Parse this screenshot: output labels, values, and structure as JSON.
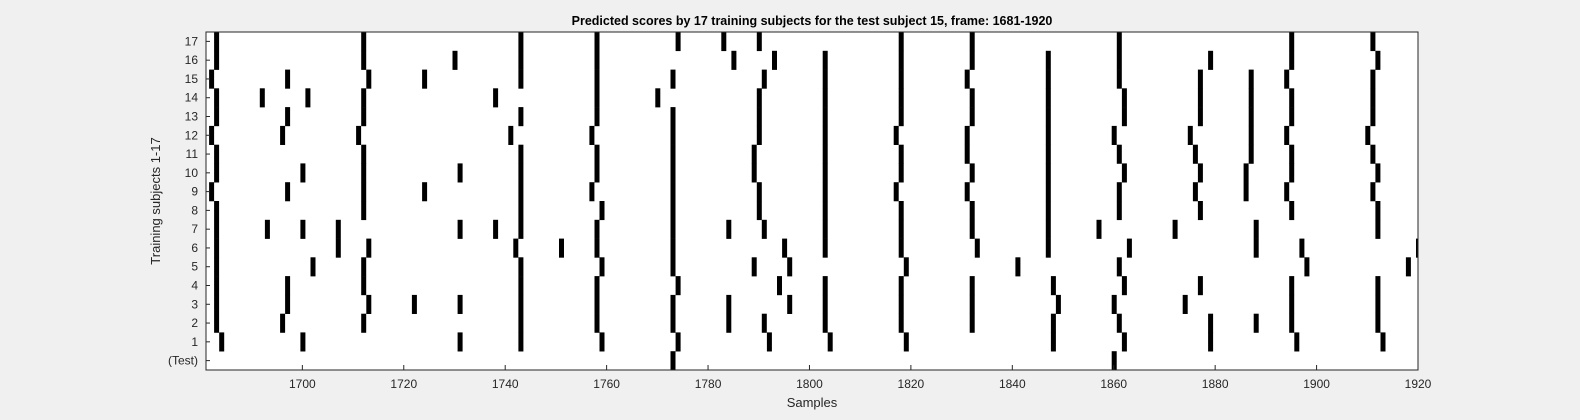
{
  "chart_data": {
    "type": "heatmap",
    "title": "Predicted scores by 17 training subjects for the test subject 15, frame: 1681-1920",
    "xlabel": "Samples",
    "ylabel": "Training subjects 1-17",
    "xlim": [
      1681,
      1920
    ],
    "xticks": [
      1700,
      1720,
      1740,
      1760,
      1780,
      1800,
      1820,
      1840,
      1860,
      1880,
      1900,
      1920
    ],
    "rows": [
      {
        "label": "(Test)",
        "events": [
          1773,
          1860
        ]
      },
      {
        "label": "1",
        "events": [
          1684,
          1700,
          1731,
          1743,
          1759,
          1774,
          1792,
          1804,
          1819,
          1848,
          1862,
          1879,
          1896,
          1913
        ]
      },
      {
        "label": "2",
        "events": [
          1683,
          1696,
          1712,
          1743,
          1758,
          1773,
          1784,
          1791,
          1803,
          1818,
          1832,
          1848,
          1861,
          1879,
          1888,
          1895,
          1912
        ]
      },
      {
        "label": "3",
        "events": [
          1683,
          1697,
          1713,
          1722,
          1731,
          1743,
          1758,
          1773,
          1784,
          1796,
          1803,
          1818,
          1832,
          1849,
          1860,
          1874,
          1895,
          1912
        ]
      },
      {
        "label": "4",
        "events": [
          1683,
          1697,
          1712,
          1743,
          1758,
          1774,
          1794,
          1803,
          1818,
          1832,
          1848,
          1862,
          1877,
          1895,
          1912
        ]
      },
      {
        "label": "5",
        "events": [
          1683,
          1702,
          1712,
          1743,
          1759,
          1773,
          1789,
          1796,
          1819,
          1841,
          1861,
          1898,
          1918
        ]
      },
      {
        "label": "6",
        "events": [
          1683,
          1707,
          1713,
          1742,
          1751,
          1758,
          1773,
          1795,
          1803,
          1818,
          1833,
          1847,
          1863,
          1888,
          1897,
          1920
        ]
      },
      {
        "label": "7",
        "events": [
          1683,
          1693,
          1700,
          1707,
          1731,
          1738,
          1743,
          1758,
          1773,
          1784,
          1791,
          1803,
          1818,
          1832,
          1847,
          1857,
          1872,
          1888,
          1912
        ]
      },
      {
        "label": "8",
        "events": [
          1683,
          1712,
          1743,
          1759,
          1773,
          1790,
          1803,
          1818,
          1832,
          1847,
          1861,
          1877,
          1895,
          1912
        ]
      },
      {
        "label": "9",
        "events": [
          1682,
          1697,
          1712,
          1724,
          1743,
          1757,
          1773,
          1790,
          1803,
          1817,
          1831,
          1847,
          1861,
          1876,
          1886,
          1894,
          1911
        ]
      },
      {
        "label": "10",
        "events": [
          1683,
          1700,
          1712,
          1731,
          1743,
          1758,
          1773,
          1789,
          1803,
          1818,
          1832,
          1847,
          1862,
          1877,
          1886,
          1895,
          1912
        ]
      },
      {
        "label": "11",
        "events": [
          1683,
          1712,
          1743,
          1758,
          1773,
          1789,
          1803,
          1818,
          1831,
          1847,
          1861,
          1876,
          1887,
          1895,
          1911
        ]
      },
      {
        "label": "12",
        "events": [
          1682,
          1696,
          1711,
          1741,
          1757,
          1773,
          1790,
          1803,
          1817,
          1831,
          1847,
          1860,
          1875,
          1887,
          1894,
          1910
        ]
      },
      {
        "label": "13",
        "events": [
          1683,
          1697,
          1712,
          1743,
          1758,
          1773,
          1790,
          1803,
          1818,
          1832,
          1847,
          1862,
          1877,
          1887,
          1895,
          1911
        ]
      },
      {
        "label": "14",
        "events": [
          1683,
          1692,
          1701,
          1712,
          1738,
          1758,
          1770,
          1790,
          1803,
          1818,
          1832,
          1847,
          1862,
          1877,
          1887,
          1895,
          1911
        ]
      },
      {
        "label": "15",
        "events": [
          1682,
          1697,
          1713,
          1724,
          1743,
          1758,
          1773,
          1791,
          1803,
          1818,
          1831,
          1847,
          1861,
          1877,
          1887,
          1894,
          1911
        ]
      },
      {
        "label": "16",
        "events": [
          1683,
          1712,
          1730,
          1743,
          1758,
          1785,
          1793,
          1803,
          1818,
          1832,
          1847,
          1861,
          1879,
          1895,
          1912
        ]
      },
      {
        "label": "17",
        "events": [
          1683,
          1712,
          1743,
          1758,
          1774,
          1783,
          1790,
          1818,
          1832,
          1861,
          1895,
          1911
        ]
      }
    ],
    "colors": {
      "event": "#000000",
      "background": "#ffffff",
      "figure": "#f0f0f0",
      "axis": "#262626"
    },
    "grid": false,
    "legend": "none"
  }
}
